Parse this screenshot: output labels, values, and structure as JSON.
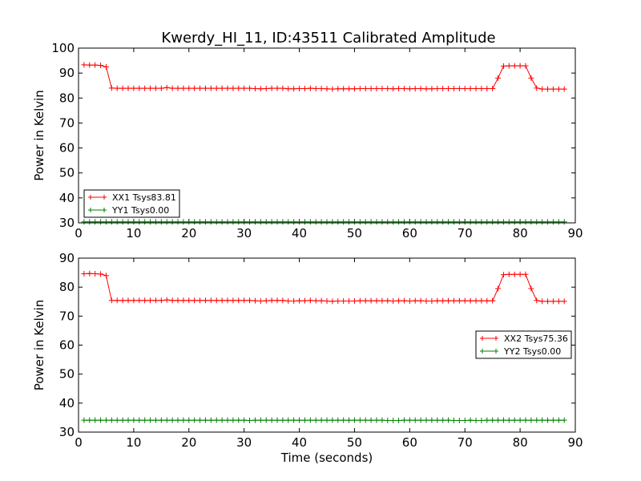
{
  "title": "Kwerdy_HI_11, ID:43511 Calibrated Amplitude",
  "chart_data": [
    {
      "type": "line",
      "ylabel": "Power in Kelvin",
      "xlabel": "",
      "xlim": [
        0,
        90
      ],
      "ylim": [
        30,
        100
      ],
      "xticks": [
        0,
        10,
        20,
        30,
        40,
        50,
        60,
        70,
        80,
        90
      ],
      "yticks": [
        30,
        40,
        50,
        60,
        70,
        80,
        90,
        100
      ],
      "grid": false,
      "legend_position": "lower-left",
      "x": [
        1,
        2,
        3,
        4,
        5,
        6,
        7,
        8,
        9,
        10,
        11,
        12,
        13,
        14,
        15,
        16,
        17,
        18,
        19,
        20,
        21,
        22,
        23,
        24,
        25,
        26,
        27,
        28,
        29,
        30,
        31,
        32,
        33,
        34,
        35,
        36,
        37,
        38,
        39,
        40,
        41,
        42,
        43,
        44,
        45,
        46,
        47,
        48,
        49,
        50,
        51,
        52,
        53,
        54,
        55,
        56,
        57,
        58,
        59,
        60,
        61,
        62,
        63,
        64,
        65,
        66,
        67,
        68,
        69,
        70,
        71,
        72,
        73,
        74,
        75,
        76,
        77,
        78,
        79,
        80,
        81,
        82,
        83,
        84,
        85,
        86,
        87,
        88
      ],
      "series": [
        {
          "name": "XX1 Tsys83.81",
          "color": "#ff0000",
          "values": [
            93.3,
            93.2,
            93.2,
            93.1,
            92.5,
            84.0,
            83.9,
            83.9,
            83.9,
            83.9,
            83.9,
            83.9,
            83.9,
            83.9,
            83.9,
            84.2,
            83.9,
            83.9,
            83.9,
            83.9,
            83.9,
            83.9,
            83.9,
            83.9,
            83.9,
            83.9,
            83.9,
            83.9,
            83.9,
            83.9,
            83.9,
            83.8,
            83.7,
            83.8,
            83.9,
            83.9,
            83.9,
            83.7,
            83.7,
            83.8,
            83.8,
            83.9,
            83.8,
            83.8,
            83.7,
            83.6,
            83.7,
            83.7,
            83.7,
            83.7,
            83.8,
            83.8,
            83.8,
            83.8,
            83.8,
            83.8,
            83.7,
            83.8,
            83.8,
            83.7,
            83.8,
            83.8,
            83.7,
            83.7,
            83.8,
            83.8,
            83.8,
            83.8,
            83.8,
            83.8,
            83.8,
            83.8,
            83.8,
            83.8,
            83.8,
            88.0,
            92.8,
            92.9,
            92.9,
            92.9,
            92.9,
            88.0,
            84.0,
            83.6,
            83.6,
            83.6,
            83.6,
            83.6
          ]
        },
        {
          "name": "YY1 Tsys0.00",
          "color": "#008000",
          "values": [
            30.4,
            30.4,
            30.4,
            30.4,
            30.4,
            30.4,
            30.4,
            30.4,
            30.4,
            30.4,
            30.4,
            30.4,
            30.4,
            30.4,
            30.4,
            30.4,
            30.4,
            30.4,
            30.4,
            30.4,
            30.4,
            30.4,
            30.4,
            30.4,
            30.4,
            30.4,
            30.4,
            30.4,
            30.4,
            30.4,
            30.4,
            30.4,
            30.4,
            30.4,
            30.4,
            30.4,
            30.4,
            30.4,
            30.4,
            30.4,
            30.4,
            30.4,
            30.4,
            30.4,
            30.4,
            30.4,
            30.4,
            30.4,
            30.4,
            30.4,
            30.4,
            30.4,
            30.4,
            30.4,
            30.4,
            30.4,
            30.4,
            30.4,
            30.4,
            30.4,
            30.4,
            30.4,
            30.4,
            30.4,
            30.4,
            30.4,
            30.4,
            30.4,
            30.4,
            30.4,
            30.4,
            30.4,
            30.4,
            30.4,
            30.4,
            30.4,
            30.4,
            30.4,
            30.4,
            30.4,
            30.4,
            30.4,
            30.4,
            30.4,
            30.4,
            30.4,
            30.4,
            30.4
          ]
        }
      ]
    },
    {
      "type": "line",
      "ylabel": "Power in Kelvin",
      "xlabel": "Time (seconds)",
      "xlim": [
        0,
        90
      ],
      "ylim": [
        30,
        90
      ],
      "xticks": [
        0,
        10,
        20,
        30,
        40,
        50,
        60,
        70,
        80,
        90
      ],
      "yticks": [
        30,
        40,
        50,
        60,
        70,
        80,
        90
      ],
      "grid": false,
      "legend_position": "center-right",
      "x": [
        1,
        2,
        3,
        4,
        5,
        6,
        7,
        8,
        9,
        10,
        11,
        12,
        13,
        14,
        15,
        16,
        17,
        18,
        19,
        20,
        21,
        22,
        23,
        24,
        25,
        26,
        27,
        28,
        29,
        30,
        31,
        32,
        33,
        34,
        35,
        36,
        37,
        38,
        39,
        40,
        41,
        42,
        43,
        44,
        45,
        46,
        47,
        48,
        49,
        50,
        51,
        52,
        53,
        54,
        55,
        56,
        57,
        58,
        59,
        60,
        61,
        62,
        63,
        64,
        65,
        66,
        67,
        68,
        69,
        70,
        71,
        72,
        73,
        74,
        75,
        76,
        77,
        78,
        79,
        80,
        81,
        82,
        83,
        84,
        85,
        86,
        87,
        88
      ],
      "series": [
        {
          "name": "XX2 Tsys75.36",
          "color": "#ff0000",
          "values": [
            84.6,
            84.7,
            84.6,
            84.5,
            84.0,
            75.4,
            75.4,
            75.4,
            75.4,
            75.4,
            75.4,
            75.4,
            75.4,
            75.4,
            75.4,
            75.6,
            75.4,
            75.4,
            75.4,
            75.4,
            75.4,
            75.4,
            75.4,
            75.4,
            75.4,
            75.4,
            75.4,
            75.4,
            75.4,
            75.4,
            75.4,
            75.3,
            75.2,
            75.3,
            75.4,
            75.4,
            75.4,
            75.2,
            75.2,
            75.3,
            75.3,
            75.4,
            75.3,
            75.3,
            75.2,
            75.1,
            75.2,
            75.2,
            75.2,
            75.2,
            75.3,
            75.3,
            75.3,
            75.3,
            75.3,
            75.3,
            75.2,
            75.3,
            75.3,
            75.2,
            75.3,
            75.3,
            75.2,
            75.2,
            75.3,
            75.3,
            75.3,
            75.3,
            75.3,
            75.3,
            75.3,
            75.3,
            75.3,
            75.3,
            75.3,
            79.5,
            84.3,
            84.4,
            84.4,
            84.4,
            84.4,
            79.5,
            75.4,
            75.1,
            75.1,
            75.1,
            75.1,
            75.1
          ]
        },
        {
          "name": "YY2 Tsys0.00",
          "color": "#008000",
          "values": [
            34.1,
            34.1,
            34.1,
            34.1,
            34.1,
            34.1,
            34.1,
            34.1,
            34.1,
            34.1,
            34.1,
            34.1,
            34.1,
            34.1,
            34.1,
            34.1,
            34.1,
            34.1,
            34.1,
            34.1,
            34.1,
            34.1,
            34.1,
            34.1,
            34.1,
            34.1,
            34.1,
            34.1,
            34.1,
            34.1,
            34.0,
            34.1,
            34.1,
            34.1,
            34.1,
            34.1,
            34.1,
            34.1,
            34.1,
            34.1,
            34.1,
            34.1,
            34.1,
            34.1,
            34.1,
            34.1,
            34.1,
            34.1,
            34.1,
            34.1,
            34.1,
            34.1,
            34.1,
            34.1,
            34.1,
            34.0,
            34.0,
            34.0,
            34.1,
            34.1,
            34.1,
            34.1,
            34.1,
            34.1,
            34.1,
            34.1,
            34.1,
            34.0,
            34.0,
            34.0,
            34.1,
            34.0,
            34.0,
            34.1,
            34.1,
            34.1,
            34.1,
            34.1,
            34.1,
            34.1,
            34.1,
            34.1,
            34.1,
            34.1,
            34.1,
            34.1,
            34.1,
            34.1
          ]
        }
      ]
    }
  ]
}
